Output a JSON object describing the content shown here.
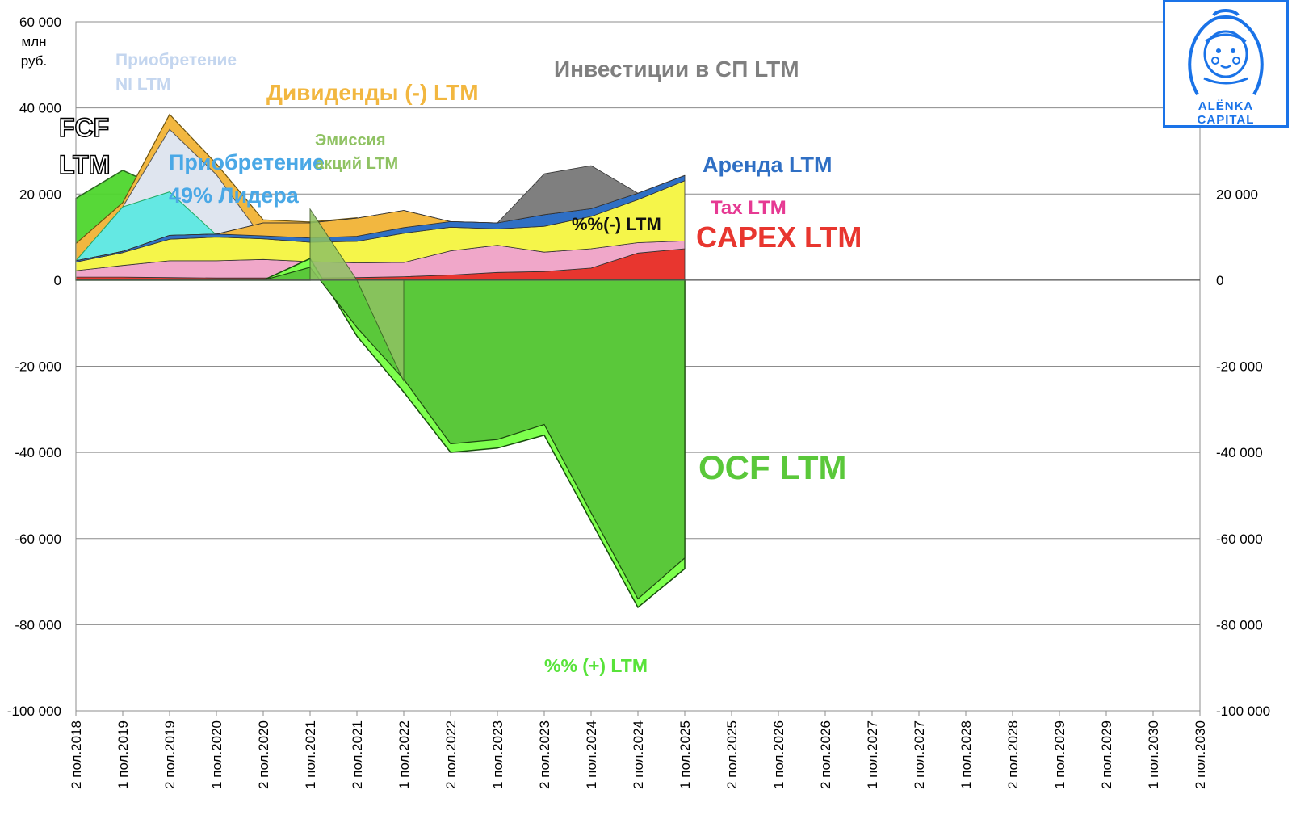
{
  "chart_data": {
    "type": "area",
    "unit_label": [
      "млн",
      "руб."
    ],
    "ylim": [
      -100000,
      60000
    ],
    "y_ticks_left": [
      "60 000",
      "40 000",
      "20 000",
      "0",
      "-20 000",
      "-40 000",
      "-60 000",
      "-80 000",
      "-100 000"
    ],
    "y_ticks_right": [
      "20 000",
      "0",
      "-20 000",
      "-40 000",
      "-60 000",
      "-80 000",
      "-100 000"
    ],
    "categories": [
      "2 пол.2018",
      "1 пол.2019",
      "2 пол.2019",
      "1 пол.2020",
      "2 пол.2020",
      "1 пол.2021",
      "2 пол.2021",
      "1 пол.2022",
      "2 пол.2022",
      "1 пол.2023",
      "2 пол.2023",
      "1 пол.2024",
      "2 пол.2024",
      "1 пол.2025",
      "2 пол.2025",
      "1 пол.2026",
      "2 пол.2026",
      "1 пол.2027",
      "2 пол.2027",
      "1 пол.2028",
      "2 пол.2028",
      "1 пол.2029",
      "2 пол.2029",
      "1 пол.2030",
      "2 пол.2030"
    ],
    "stacked_series": [
      {
        "name": "CAPEX LTM",
        "color": "#e8362f",
        "values": [
          700,
          700,
          600,
          500,
          500,
          500,
          600,
          800,
          1200,
          1800,
          2000,
          2800,
          6300,
          7300
        ]
      },
      {
        "name": "Tax LTM",
        "color": "#f0a7c9",
        "values": [
          1500,
          2700,
          3900,
          4000,
          4300,
          3800,
          3400,
          3300,
          5600,
          6300,
          4500,
          4500,
          2400,
          1800
        ]
      },
      {
        "name": "%%(-) LTM",
        "color": "#f5f54a",
        "values": [
          2000,
          3000,
          5000,
          5500,
          4800,
          4500,
          5000,
          6800,
          5500,
          3800,
          6000,
          7500,
          10000,
          14000
        ]
      },
      {
        "name": "Аренда LTM",
        "color": "#2f6fc4",
        "values": [
          300,
          300,
          900,
          700,
          700,
          1000,
          1200,
          1300,
          1300,
          1400,
          2700,
          1800,
          1500,
          1200
        ]
      },
      {
        "name": "Дивиденды (-) LTM",
        "color": "#f2b740",
        "values": [
          0,
          0,
          0,
          0,
          3000,
          3500,
          4200,
          4000,
          0,
          0,
          0,
          0,
          0,
          0
        ]
      },
      {
        "name": "Инвестиции в СП LTM",
        "color": "#7f7f7f",
        "values": [
          0,
          0,
          0,
          0,
          0,
          0,
          0,
          0,
          0,
          0,
          9500,
          10000,
          0,
          0
        ]
      }
    ],
    "overlay_series": [
      {
        "name": "Приобретение 49% Лидера",
        "color": "#64e8e3",
        "values": [
          4500,
          17000,
          20500,
          10500,
          9500,
          8800,
          8500,
          null,
          null,
          null,
          null,
          null,
          null,
          null
        ]
      },
      {
        "name": "Приобретение NI LTM",
        "color": "#dfe5ef",
        "values": [
          4500,
          17000,
          35000,
          24500,
          9500,
          8800,
          8500,
          null,
          null,
          null,
          null,
          null,
          null,
          null
        ]
      },
      {
        "name": "Дивиденды (-) LTM (edge)",
        "color": "#f2b740",
        "values": [
          8500,
          18000,
          38500,
          27000,
          14000,
          13500,
          14500,
          null,
          null,
          null,
          null,
          null,
          null,
          null
        ]
      },
      {
        "name": "FCF LTM",
        "color": "#4fd62e",
        "values": [
          19000,
          25500,
          20500,
          11000,
          9000,
          5000,
          -13000,
          -26000,
          -40000,
          -39000,
          -36000,
          -56000,
          -76000,
          -67000
        ]
      },
      {
        "name": "Эмиссия акций LTM",
        "color": "#8fc263",
        "values": [
          null,
          null,
          null,
          null,
          null,
          16500,
          0,
          -23500,
          null,
          null,
          null,
          null,
          null,
          null
        ]
      },
      {
        "name": "OCF LTM",
        "color": "#5ac83a",
        "values": [
          0,
          0,
          0,
          0,
          0,
          3000,
          -11000,
          -23000,
          -38000,
          -37000,
          -33500,
          -54000,
          -74000,
          -64500
        ]
      },
      {
        "name": "%% (+) LTM",
        "color": "#7dff4d",
        "values": [
          -1000,
          -1000,
          -1000,
          -1000,
          -1000,
          -1000,
          -1500,
          -2000,
          -1500,
          -1700,
          -2300,
          -2000,
          -2500,
          -2000
        ]
      }
    ],
    "legend_labels": {
      "investments_jv": "Инвестиции в СП LTM",
      "acq_ni_line1": "Приобретение",
      "acq_ni_line2": "NI LTM",
      "dividends": "Дивиденды  (-) LTM",
      "fcf_line1": "FCF",
      "fcf_line2": "LTM",
      "acq_leader_line1": "Приобретение",
      "acq_leader_line2": "49% Лидера",
      "emission_line1": "Эмиссия",
      "emission_line2": "акций LTM",
      "lease": "Аренда LTM",
      "tax": "Tax LTM",
      "interest_neg": "%%(-) LTM",
      "capex": "CAPEX LTM",
      "ocf": "OCF LTM",
      "interest_pos": "%% (+) LTM"
    }
  },
  "logo": {
    "line1": "ALЁNKA",
    "line2": "CAPITAL",
    "accent": "#1a73e8"
  }
}
